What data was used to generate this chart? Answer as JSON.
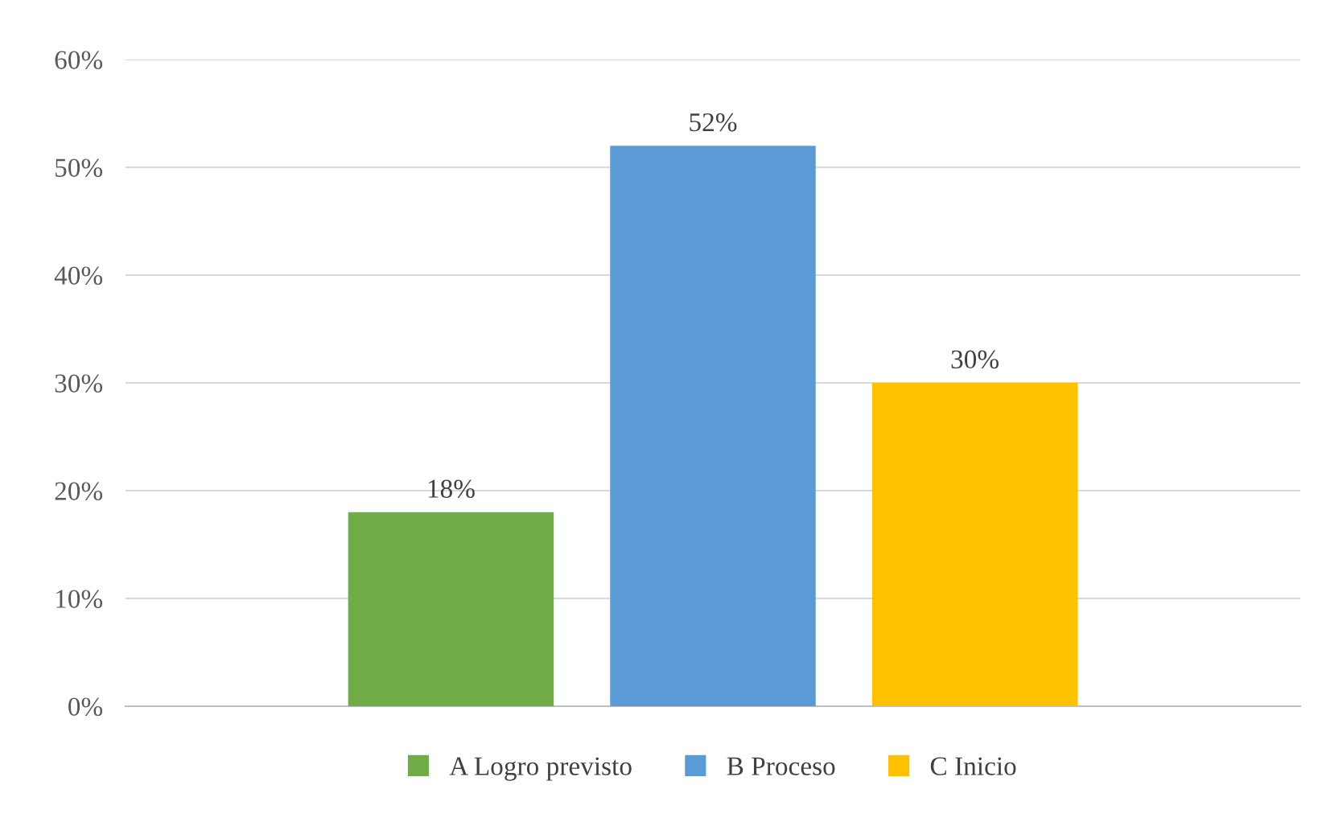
{
  "chart_data": {
    "type": "bar",
    "categories": [
      null
    ],
    "series": [
      {
        "name": "A Logro previsto",
        "color": "#70ad47",
        "values": [
          18
        ],
        "value_labels": [
          "18%"
        ]
      },
      {
        "name": "B Proceso",
        "color": "#5b9bd5",
        "values": [
          52
        ],
        "value_labels": [
          "52%"
        ]
      },
      {
        "name": "C Inicio",
        "color": "#ffc000",
        "values": [
          30
        ],
        "value_labels": [
          "30%"
        ]
      }
    ],
    "ylim": [
      0,
      60
    ],
    "yticks": [
      {
        "value": 0,
        "label": "0%"
      },
      {
        "value": 10,
        "label": "10%"
      },
      {
        "value": 20,
        "label": "20%"
      },
      {
        "value": 30,
        "label": "30%"
      },
      {
        "value": 40,
        "label": "40%"
      },
      {
        "value": 50,
        "label": "50%"
      },
      {
        "value": 60,
        "label": "60%"
      }
    ],
    "grid": "y",
    "legend": "bottom"
  }
}
